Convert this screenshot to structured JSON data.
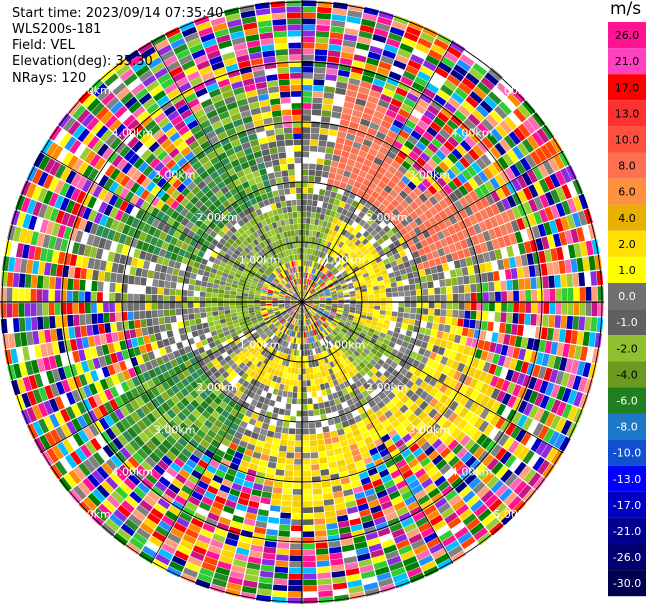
{
  "header": {
    "start_time": "Start time: 2023/09/14 07:35:40",
    "instrument": "WLS200s-181",
    "field": "Field: VEL",
    "elevation": "Elevation(deg): 35.30",
    "nrays": "NRays: 120"
  },
  "chart_data": {
    "type": "ppi",
    "field": "VEL",
    "unit": "m/s",
    "nrays": 120,
    "range_rings": [
      "1.00km",
      "2.00km",
      "3.00km",
      "4.00km",
      "5.00km"
    ],
    "colorbar": {
      "labels": [
        "26.0",
        "21.0",
        "17.0",
        "13.0",
        "10.0",
        "8.0",
        "6.0",
        "4.0",
        "2.0",
        "1.0",
        "0.0",
        "-1.0",
        "-2.0",
        "-4.0",
        "-6.0",
        "-8.0",
        "-10.0",
        "-13.0",
        "-17.0",
        "-21.0",
        "-26.0",
        "-30.0"
      ],
      "colors": [
        "#ff1493",
        "#ff40c0",
        "#ff0000",
        "#ff3030",
        "#ff5040",
        "#ff7050",
        "#ff9040",
        "#e8b000",
        "#ffe000",
        "#ffff00",
        "#707070",
        "#606060",
        "#90c030",
        "#6a9a20",
        "#208020",
        "#1e78c8",
        "#1050d0",
        "#0000ff",
        "#0000c0",
        "#000090",
        "#000070",
        "#000050"
      ]
    },
    "palette_noise": [
      "#ff1493",
      "#ff0000",
      "#ff8c00",
      "#ffd700",
      "#ffff00",
      "#32cd32",
      "#228b22",
      "#008000",
      "#1e90ff",
      "#0000cd",
      "#00008b",
      "#8a2be2",
      "#ff69b4",
      "#ff4500",
      "#00bfff",
      "#ffffff",
      "#808080",
      "#9acd32",
      "#c71585",
      "#ffa07a"
    ]
  }
}
